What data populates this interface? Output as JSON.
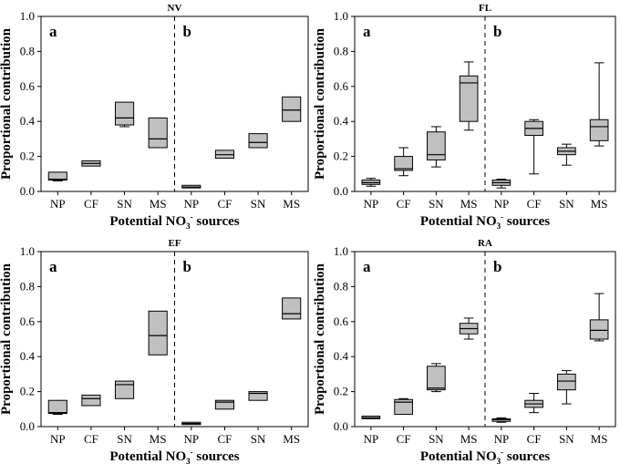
{
  "chart_data": [
    {
      "type": "box",
      "title": "NV",
      "xlabel_parts": [
        "Potential NO",
        "3",
        "-",
        " sources"
      ],
      "ylabel": "Proportional contribution",
      "ylim": [
        0,
        1
      ],
      "yticks": [
        "0.0",
        "0.2",
        "0.4",
        "0.6",
        "0.8",
        "1.0"
      ],
      "categories": [
        "NP",
        "CF",
        "SN",
        "MS",
        "NP",
        "CF",
        "SN",
        "MS"
      ],
      "subpanels": [
        "a",
        "b"
      ],
      "boxes": [
        {
          "min": 0.06,
          "q1": 0.065,
          "median": 0.07,
          "q3": 0.11,
          "max": 0.11
        },
        {
          "min": 0.145,
          "q1": 0.145,
          "median": 0.16,
          "q3": 0.175,
          "max": 0.175
        },
        {
          "min": 0.37,
          "q1": 0.38,
          "median": 0.42,
          "q3": 0.51,
          "max": 0.51
        },
        {
          "min": 0.25,
          "q1": 0.25,
          "median": 0.3,
          "q3": 0.42,
          "max": 0.42
        },
        {
          "min": 0.02,
          "q1": 0.02,
          "median": 0.025,
          "q3": 0.035,
          "max": 0.035
        },
        {
          "min": 0.19,
          "q1": 0.19,
          "median": 0.21,
          "q3": 0.235,
          "max": 0.235
        },
        {
          "min": 0.25,
          "q1": 0.25,
          "median": 0.28,
          "q3": 0.33,
          "max": 0.33
        },
        {
          "min": 0.4,
          "q1": 0.4,
          "median": 0.465,
          "q3": 0.54,
          "max": 0.54
        }
      ]
    },
    {
      "type": "box",
      "title": "FL",
      "xlabel_parts": [
        "Potential NO",
        "3",
        "-",
        " sources"
      ],
      "ylabel": "Proportional contribution",
      "ylim": [
        0,
        1
      ],
      "yticks": [
        "0.0",
        "0.2",
        "0.4",
        "0.6",
        "0.8",
        "1.0"
      ],
      "categories": [
        "NP",
        "CF",
        "SN",
        "MS",
        "NP",
        "CF",
        "SN",
        "MS"
      ],
      "subpanels": [
        "a",
        "b"
      ],
      "boxes": [
        {
          "min": 0.03,
          "q1": 0.04,
          "median": 0.05,
          "q3": 0.065,
          "max": 0.075
        },
        {
          "min": 0.09,
          "q1": 0.12,
          "median": 0.13,
          "q3": 0.2,
          "max": 0.25
        },
        {
          "min": 0.14,
          "q1": 0.18,
          "median": 0.21,
          "q3": 0.34,
          "max": 0.37
        },
        {
          "min": 0.35,
          "q1": 0.4,
          "median": 0.62,
          "q3": 0.66,
          "max": 0.74
        },
        {
          "min": 0.02,
          "q1": 0.035,
          "median": 0.05,
          "q3": 0.065,
          "max": 0.07
        },
        {
          "min": 0.1,
          "q1": 0.32,
          "median": 0.36,
          "q3": 0.4,
          "max": 0.41
        },
        {
          "min": 0.15,
          "q1": 0.21,
          "median": 0.23,
          "q3": 0.25,
          "max": 0.27
        },
        {
          "min": 0.26,
          "q1": 0.29,
          "median": 0.37,
          "q3": 0.41,
          "max": 0.735
        }
      ]
    },
    {
      "type": "box",
      "title": "EF",
      "xlabel_parts": [
        "Potential NO",
        "3",
        "-",
        " sources"
      ],
      "ylabel": "Proportional contribution",
      "ylim": [
        0,
        1
      ],
      "yticks": [
        "0.0",
        "0.2",
        "0.4",
        "0.6",
        "0.8",
        "1.0"
      ],
      "categories": [
        "NP",
        "CF",
        "SN",
        "MS",
        "NP",
        "CF",
        "SN",
        "MS"
      ],
      "subpanels": [
        "a",
        "b"
      ],
      "boxes": [
        {
          "min": 0.07,
          "q1": 0.075,
          "median": 0.08,
          "q3": 0.15,
          "max": 0.15
        },
        {
          "min": 0.12,
          "q1": 0.12,
          "median": 0.16,
          "q3": 0.18,
          "max": 0.18
        },
        {
          "min": 0.16,
          "q1": 0.16,
          "median": 0.24,
          "q3": 0.26,
          "max": 0.26
        },
        {
          "min": 0.41,
          "q1": 0.41,
          "median": 0.52,
          "q3": 0.66,
          "max": 0.66
        },
        {
          "min": 0.012,
          "q1": 0.012,
          "median": 0.018,
          "q3": 0.025,
          "max": 0.025
        },
        {
          "min": 0.1,
          "q1": 0.1,
          "median": 0.14,
          "q3": 0.15,
          "max": 0.15
        },
        {
          "min": 0.15,
          "q1": 0.15,
          "median": 0.19,
          "q3": 0.2,
          "max": 0.2
        },
        {
          "min": 0.615,
          "q1": 0.615,
          "median": 0.645,
          "q3": 0.735,
          "max": 0.735
        }
      ]
    },
    {
      "type": "box",
      "title": "RA",
      "xlabel_parts": [
        "Potential NO",
        "3",
        "-",
        " sources"
      ],
      "ylabel": "Proportional contribution",
      "ylim": [
        0,
        1
      ],
      "yticks": [
        "0.0",
        "0.2",
        "0.4",
        "0.6",
        "0.8",
        "1.0"
      ],
      "categories": [
        "NP",
        "CF",
        "SN",
        "MS",
        "NP",
        "CF",
        "SN",
        "MS"
      ],
      "subpanels": [
        "a",
        "b"
      ],
      "boxes": [
        {
          "min": 0.045,
          "q1": 0.045,
          "median": 0.05,
          "q3": 0.06,
          "max": 0.06
        },
        {
          "min": 0.07,
          "q1": 0.07,
          "median": 0.14,
          "q3": 0.155,
          "max": 0.16
        },
        {
          "min": 0.2,
          "q1": 0.21,
          "median": 0.22,
          "q3": 0.345,
          "max": 0.36
        },
        {
          "min": 0.5,
          "q1": 0.53,
          "median": 0.56,
          "q3": 0.59,
          "max": 0.62
        },
        {
          "min": 0.025,
          "q1": 0.03,
          "median": 0.04,
          "q3": 0.045,
          "max": 0.05
        },
        {
          "min": 0.08,
          "q1": 0.11,
          "median": 0.13,
          "q3": 0.15,
          "max": 0.19
        },
        {
          "min": 0.13,
          "q1": 0.21,
          "median": 0.26,
          "q3": 0.3,
          "max": 0.32
        },
        {
          "min": 0.49,
          "q1": 0.5,
          "median": 0.55,
          "q3": 0.61,
          "max": 0.76
        }
      ]
    }
  ],
  "colors": {
    "box_fill": "#c0c0c0",
    "stroke": "#000000",
    "background": "#ffffff"
  }
}
